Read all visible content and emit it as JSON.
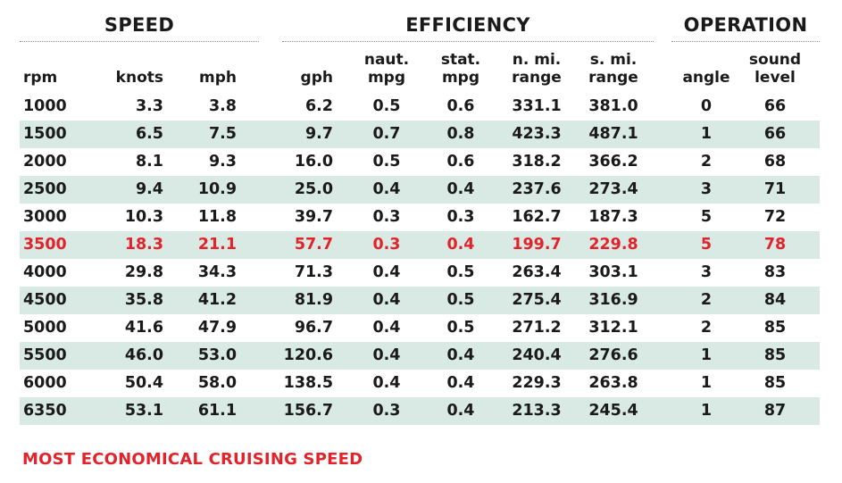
{
  "groups": {
    "speed": "SPEED",
    "efficiency": "EFFICIENCY",
    "operation": "OPERATION"
  },
  "columns": [
    {
      "key": "rpm",
      "line1": "",
      "line2": "rpm"
    },
    {
      "key": "knots",
      "line1": "",
      "line2": "knots"
    },
    {
      "key": "mph",
      "line1": "",
      "line2": "mph"
    },
    {
      "key": "gph",
      "line1": "",
      "line2": "gph"
    },
    {
      "key": "naut_mpg",
      "line1": "naut.",
      "line2": "mpg"
    },
    {
      "key": "stat_mpg",
      "line1": "stat.",
      "line2": "mpg"
    },
    {
      "key": "n_range",
      "line1": "n. mi.",
      "line2": "range"
    },
    {
      "key": "s_range",
      "line1": "s. mi.",
      "line2": "range"
    },
    {
      "key": "angle",
      "line1": "",
      "line2": "angle"
    },
    {
      "key": "sound",
      "line1": "sound",
      "line2": "level"
    }
  ],
  "rows": [
    [
      "1000",
      "3.3",
      "3.8",
      "6.2",
      "0.5",
      "0.6",
      "331.1",
      "381.0",
      "0",
      "66"
    ],
    [
      "1500",
      "6.5",
      "7.5",
      "9.7",
      "0.7",
      "0.8",
      "423.3",
      "487.1",
      "1",
      "66"
    ],
    [
      "2000",
      "8.1",
      "9.3",
      "16.0",
      "0.5",
      "0.6",
      "318.2",
      "366.2",
      "2",
      "68"
    ],
    [
      "2500",
      "9.4",
      "10.9",
      "25.0",
      "0.4",
      "0.4",
      "237.6",
      "273.4",
      "3",
      "71"
    ],
    [
      "3000",
      "10.3",
      "11.8",
      "39.7",
      "0.3",
      "0.3",
      "162.7",
      "187.3",
      "5",
      "72"
    ],
    [
      "3500",
      "18.3",
      "21.1",
      "57.7",
      "0.3",
      "0.4",
      "199.7",
      "229.8",
      "5",
      "78"
    ],
    [
      "4000",
      "29.8",
      "34.3",
      "71.3",
      "0.4",
      "0.5",
      "263.4",
      "303.1",
      "3",
      "83"
    ],
    [
      "4500",
      "35.8",
      "41.2",
      "81.9",
      "0.4",
      "0.5",
      "275.4",
      "316.9",
      "2",
      "84"
    ],
    [
      "5000",
      "41.6",
      "47.9",
      "96.7",
      "0.4",
      "0.5",
      "271.2",
      "312.1",
      "2",
      "85"
    ],
    [
      "5500",
      "46.0",
      "53.0",
      "120.6",
      "0.4",
      "0.4",
      "240.4",
      "276.6",
      "1",
      "85"
    ],
    [
      "6000",
      "50.4",
      "58.0",
      "138.5",
      "0.4",
      "0.4",
      "229.3",
      "263.8",
      "1",
      "85"
    ],
    [
      "6350",
      "53.1",
      "61.1",
      "156.7",
      "0.3",
      "0.4",
      "213.3",
      "245.4",
      "1",
      "87"
    ]
  ],
  "highlight_row_rpm": "3500",
  "footnote": "MOST ECONOMICAL CRUISING SPEED",
  "colors": {
    "highlight": "#e3232b",
    "row_shade": "#d9e9e4",
    "text": "#1a1a1a"
  }
}
